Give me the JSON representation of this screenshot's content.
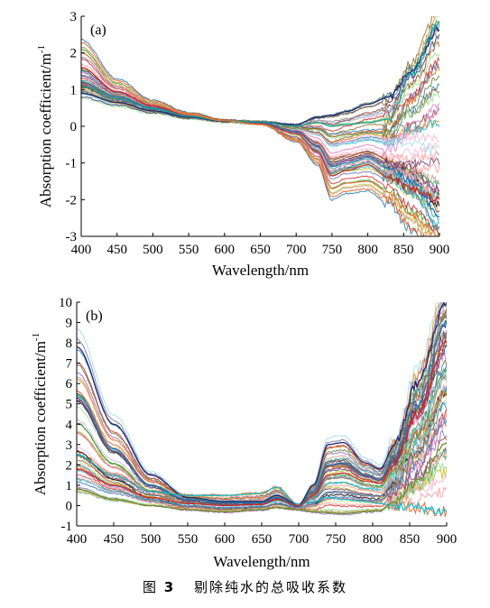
{
  "caption": {
    "label": "图",
    "number": "3",
    "text": "剔除纯水的总吸收系数"
  },
  "chart_data": [
    {
      "type": "line",
      "panel_label": "(a)",
      "xlabel": "Wavelength/nm",
      "ylabel": "Absorption coefficient/m",
      "ylabel_sup": "-1",
      "xlim": [
        400,
        900
      ],
      "ylim": [
        -3,
        3
      ],
      "xticks": [
        400,
        450,
        500,
        550,
        600,
        650,
        700,
        750,
        800,
        850,
        900
      ],
      "yticks": [
        -3,
        -2,
        -1,
        0,
        1,
        2,
        3
      ],
      "grid": false,
      "legend": "none",
      "n_series": 60,
      "x": [
        400,
        450,
        500,
        550,
        600,
        650,
        700,
        730,
        750,
        770,
        800,
        830,
        860,
        900
      ],
      "series": [
        {
          "values": [
            1.6,
            0.95,
            0.55,
            0.3,
            0.15,
            0.08,
            -0.2,
            -0.7,
            -1.35,
            -1.2,
            -1.05,
            -1.4,
            -1.7,
            -2.0
          ],
          "color": "#d62728"
        },
        {
          "values": [
            1.2,
            0.8,
            0.5,
            0.28,
            0.15,
            0.1,
            -0.15,
            -0.55,
            -1.1,
            -1.0,
            -0.85,
            -1.15,
            -1.5,
            -2.4
          ],
          "color": "#1f77b4"
        },
        {
          "values": [
            0.9,
            0.65,
            0.42,
            0.25,
            0.14,
            0.12,
            0.05,
            0.25,
            0.3,
            0.4,
            0.6,
            0.8,
            1.5,
            2.7
          ],
          "color": "#1f2a6e"
        },
        {
          "values": [
            1.1,
            0.75,
            0.48,
            0.27,
            0.15,
            0.12,
            0.0,
            0.1,
            0.0,
            0.05,
            0.1,
            0.2,
            1.4,
            2.8
          ],
          "color": "#17a39a"
        },
        {
          "values": [
            2.0,
            1.1,
            0.6,
            0.32,
            0.15,
            0.05,
            -0.35,
            -0.9,
            -1.7,
            -1.55,
            -1.5,
            -1.8,
            -2.4,
            -3.0
          ],
          "color": "#e07b39"
        }
      ]
    },
    {
      "type": "line",
      "panel_label": "(b)",
      "xlabel": "Wavelength/nm",
      "ylabel": "Absorption coefficient/m",
      "ylabel_sup": "-1",
      "xlim": [
        400,
        900
      ],
      "ylim": [
        -1,
        10
      ],
      "xticks": [
        400,
        450,
        500,
        550,
        600,
        650,
        700,
        750,
        800,
        850,
        900
      ],
      "yticks": [
        -1,
        0,
        1,
        2,
        3,
        4,
        5,
        6,
        7,
        8,
        9,
        10
      ],
      "grid": false,
      "legend": "none",
      "n_series": 60,
      "x": [
        400,
        450,
        500,
        550,
        600,
        650,
        670,
        700,
        720,
        740,
        760,
        790,
        810,
        830,
        860,
        900
      ],
      "series": [
        {
          "values": [
            7.8,
            4.0,
            1.5,
            0.4,
            0.2,
            0.2,
            0.5,
            0.05,
            1.0,
            3.0,
            3.1,
            2.1,
            1.8,
            3.0,
            6.0,
            10.0
          ],
          "color": "#1f2a6e"
        },
        {
          "values": [
            5.5,
            2.8,
            1.0,
            0.3,
            0.15,
            0.15,
            0.4,
            0.0,
            0.7,
            2.0,
            2.1,
            1.5,
            1.3,
            2.5,
            5.0,
            9.0
          ],
          "color": "#1f77b4"
        },
        {
          "values": [
            2.5,
            1.5,
            0.7,
            0.5,
            0.5,
            0.6,
            0.9,
            0.05,
            0.2,
            0.4,
            0.3,
            0.2,
            0.1,
            0.0,
            -0.1,
            -0.3
          ],
          "color": "#17becf"
        },
        {
          "values": [
            0.8,
            0.3,
            0.0,
            -0.2,
            -0.3,
            -0.2,
            -0.1,
            -0.2,
            -0.3,
            -0.35,
            -0.4,
            -0.3,
            -0.25,
            0.2,
            1.2,
            3.1
          ],
          "color": "#6b8e23"
        },
        {
          "values": [
            1.8,
            1.0,
            0.4,
            0.1,
            0.0,
            0.05,
            0.3,
            0.0,
            0.5,
            1.5,
            1.6,
            1.2,
            1.1,
            2.0,
            4.5,
            8.0
          ],
          "color": "#d62728"
        }
      ]
    }
  ]
}
